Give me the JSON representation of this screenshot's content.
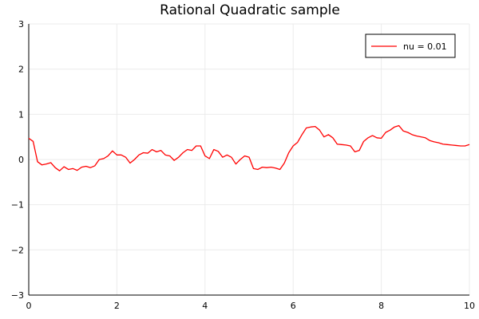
{
  "chart_data": {
    "type": "line",
    "title": "Rational Quadratic sample",
    "xlabel": "",
    "ylabel": "",
    "xlim": [
      0,
      10
    ],
    "ylim": [
      -3,
      3
    ],
    "xticks": [
      0,
      2,
      4,
      6,
      8,
      10
    ],
    "yticks": [
      -3,
      -2,
      -1,
      0,
      1,
      2,
      3
    ],
    "xtick_labels": [
      "0",
      "2",
      "4",
      "6",
      "8",
      "10"
    ],
    "ytick_labels": [
      "−3",
      "−2",
      "−1",
      "0",
      "1",
      "2",
      "3"
    ],
    "grid": true,
    "legend_position": "top-right",
    "series": [
      {
        "name": "nu = 0.01",
        "color": "#ff0000",
        "x": [
          0,
          0.1,
          0.2,
          0.3,
          0.4,
          0.5,
          0.6,
          0.7,
          0.8,
          0.9,
          1.0,
          1.1,
          1.2,
          1.3,
          1.4,
          1.5,
          1.6,
          1.7,
          1.8,
          1.9,
          2.0,
          2.1,
          2.2,
          2.3,
          2.4,
          2.5,
          2.6,
          2.7,
          2.8,
          2.9,
          3.0,
          3.1,
          3.2,
          3.3,
          3.4,
          3.5,
          3.6,
          3.7,
          3.8,
          3.9,
          4.0,
          4.1,
          4.2,
          4.3,
          4.4,
          4.5,
          4.6,
          4.7,
          4.8,
          4.9,
          5.0,
          5.1,
          5.2,
          5.3,
          5.4,
          5.5,
          5.6,
          5.7,
          5.8,
          5.9,
          6.0,
          6.1,
          6.2,
          6.3,
          6.4,
          6.5,
          6.6,
          6.7,
          6.8,
          6.9,
          7.0,
          7.1,
          7.2,
          7.3,
          7.4,
          7.5,
          7.6,
          7.7,
          7.8,
          7.9,
          8.0,
          8.1,
          8.2,
          8.3,
          8.4,
          8.5,
          8.6,
          8.7,
          8.8,
          8.9,
          9.0,
          9.1,
          9.2,
          9.3,
          9.4,
          9.5,
          9.6,
          9.7,
          9.8,
          9.9,
          10.0
        ],
        "y": [
          0.47,
          0.4,
          -0.05,
          -0.12,
          -0.1,
          -0.07,
          -0.18,
          -0.25,
          -0.16,
          -0.22,
          -0.2,
          -0.24,
          -0.17,
          -0.15,
          -0.18,
          -0.14,
          0.0,
          0.02,
          0.08,
          0.19,
          0.1,
          0.1,
          0.05,
          -0.08,
          0.0,
          0.1,
          0.15,
          0.14,
          0.22,
          0.17,
          0.2,
          0.1,
          0.08,
          -0.02,
          0.05,
          0.15,
          0.22,
          0.2,
          0.3,
          0.3,
          0.08,
          0.02,
          0.22,
          0.18,
          0.05,
          0.1,
          0.05,
          -0.1,
          0.0,
          0.08,
          0.05,
          -0.2,
          -0.22,
          -0.17,
          -0.18,
          -0.17,
          -0.19,
          -0.22,
          -0.08,
          0.15,
          0.3,
          0.38,
          0.55,
          0.7,
          0.72,
          0.73,
          0.65,
          0.5,
          0.55,
          0.48,
          0.34,
          0.33,
          0.32,
          0.3,
          0.17,
          0.2,
          0.4,
          0.48,
          0.53,
          0.48,
          0.47,
          0.6,
          0.65,
          0.72,
          0.75,
          0.63,
          0.6,
          0.55,
          0.52,
          0.5,
          0.48,
          0.42,
          0.39,
          0.37,
          0.34,
          0.33,
          0.32,
          0.31,
          0.3,
          0.3,
          0.33
        ]
      }
    ]
  }
}
